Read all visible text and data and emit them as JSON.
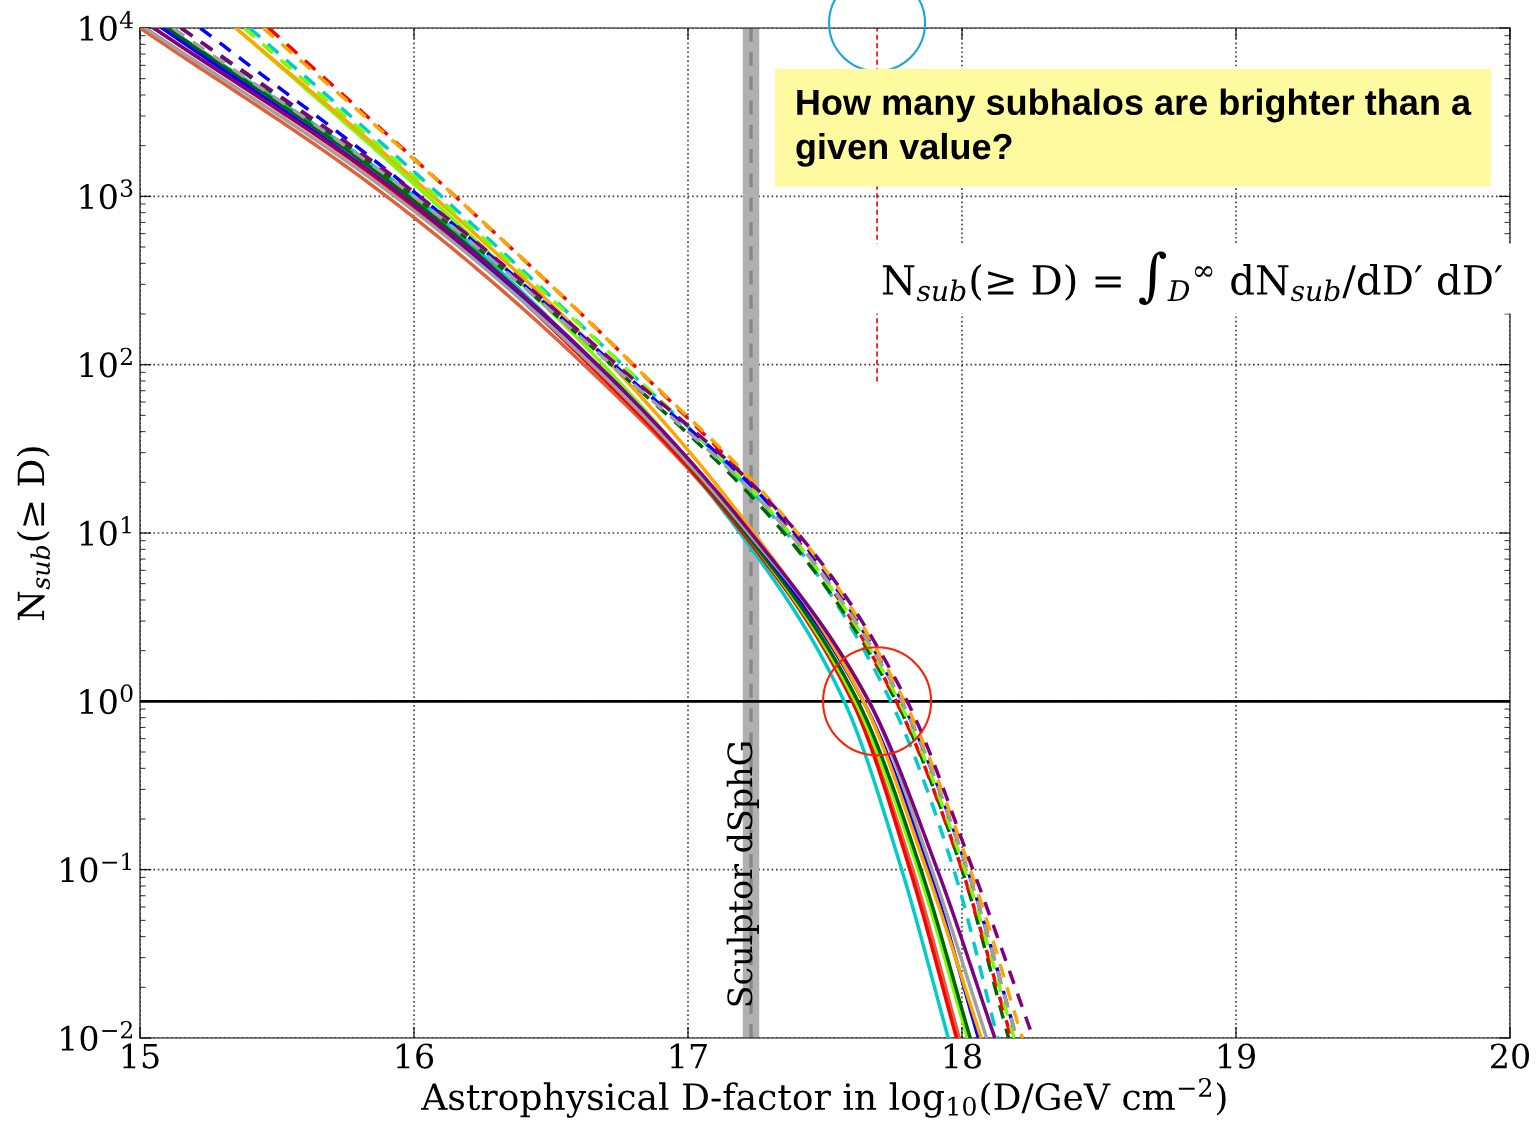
{
  "chart_data": {
    "type": "line",
    "xlabel": "Astrophysical D-factor in log$_{10}$(D/GeV cm$^{−2}$)",
    "ylabel": "N$_{sub}$(≥ D)",
    "xlim": [
      15,
      20
    ],
    "xticks": [
      15,
      16,
      17,
      18,
      19,
      20
    ],
    "ylim": [
      0.01,
      10000
    ],
    "log": "y",
    "yticks": [
      {
        "value": 0.01,
        "label": "10$^{−2}$"
      },
      {
        "value": 0.1,
        "label": "10$^{−1}$"
      },
      {
        "value": 1,
        "label": "10$^{0}$"
      },
      {
        "value": 10,
        "label": "10$^{1}$"
      },
      {
        "value": 100,
        "label": "10$^{2}$"
      },
      {
        "value": 1000,
        "label": "10$^{3}$"
      },
      {
        "value": 10000,
        "label": "10$^{4}$"
      }
    ],
    "grid": true,
    "series": [
      {
        "color": "#e0603c",
        "line_style": "solid",
        "x": [
          15.0,
          15.9,
          16.62,
          17.2,
          17.6,
          17.82,
          17.99
        ],
        "values": [
          10000,
          1000,
          100,
          10,
          1,
          0.1,
          0.01
        ]
      },
      {
        "color": "#00cccc",
        "line_style": "solid",
        "x": [
          15.1,
          16.0,
          16.66,
          17.19,
          17.57,
          17.78,
          17.95
        ],
        "values": [
          10000,
          1000,
          100,
          10,
          1,
          0.1,
          0.01
        ]
      },
      {
        "color": "#ff0000",
        "line_style": "solid",
        "x": [
          15.05,
          15.95,
          16.64,
          17.2,
          17.6,
          17.81,
          17.98
        ],
        "values": [
          10000,
          1000,
          100,
          10,
          1,
          0.1,
          0.01
        ]
      },
      {
        "color": "#7cfc00",
        "line_style": "solid",
        "x": [
          15.35,
          16.05,
          16.69,
          17.21,
          17.61,
          17.84,
          18.02
        ],
        "values": [
          10000,
          1000,
          100,
          10,
          1,
          0.1,
          0.01
        ]
      },
      {
        "color": "#006400",
        "line_style": "solid",
        "x": [
          15.1,
          15.98,
          16.66,
          17.21,
          17.62,
          17.85,
          18.03
        ],
        "values": [
          10000,
          1000,
          100,
          10,
          1,
          0.1,
          0.01
        ]
      },
      {
        "color": "#0000ff",
        "line_style": "solid",
        "x": [
          15.08,
          15.96,
          16.66,
          17.22,
          17.64,
          17.88,
          18.06
        ],
        "values": [
          10000,
          1000,
          100,
          10,
          1,
          0.1,
          0.01
        ]
      },
      {
        "color": "#ffa500",
        "line_style": "solid",
        "x": [
          15.35,
          16.07,
          16.72,
          17.24,
          17.64,
          17.87,
          18.07
        ],
        "values": [
          10000,
          1000,
          100,
          10,
          1,
          0.1,
          0.01
        ]
      },
      {
        "color": "#a0a0a0",
        "line_style": "solid",
        "x": [
          15.02,
          15.93,
          16.65,
          17.22,
          17.66,
          17.89,
          18.09
        ],
        "values": [
          10000,
          1000,
          100,
          10,
          1,
          0.1,
          0.01
        ]
      },
      {
        "color": "#800080",
        "line_style": "solid",
        "x": [
          15.05,
          15.96,
          16.67,
          17.23,
          17.66,
          17.91,
          18.12
        ],
        "values": [
          10000,
          1000,
          100,
          10,
          1,
          0.1,
          0.01
        ]
      },
      {
        "color": "#00cccc",
        "line_style": "dashed",
        "x": [
          15.4,
          16.1,
          16.76,
          17.36,
          17.74,
          17.97,
          18.13
        ],
        "values": [
          10000,
          1000,
          100,
          10,
          1,
          0.1,
          0.01
        ]
      },
      {
        "color": "#006400",
        "line_style": "dashed",
        "x": [
          15.15,
          16.0,
          16.72,
          17.35,
          17.76,
          18.0,
          18.17
        ],
        "values": [
          10000,
          1000,
          100,
          10,
          1,
          0.1,
          0.01
        ]
      },
      {
        "color": "#ff0000",
        "line_style": "dashed",
        "x": [
          15.47,
          16.15,
          16.8,
          17.38,
          17.76,
          18.0,
          18.18
        ],
        "values": [
          10000,
          1000,
          100,
          10,
          1,
          0.1,
          0.01
        ]
      },
      {
        "color": "#7cfc00",
        "line_style": "dashed",
        "x": [
          15.38,
          16.08,
          16.76,
          17.37,
          17.77,
          18.01,
          18.19
        ],
        "values": [
          10000,
          1000,
          100,
          10,
          1,
          0.1,
          0.01
        ]
      },
      {
        "color": "#0000ff",
        "line_style": "dashed",
        "x": [
          15.22,
          16.02,
          16.73,
          17.39,
          17.78,
          18.02,
          18.2
        ],
        "values": [
          10000,
          1000,
          100,
          10,
          1,
          0.1,
          0.01
        ]
      },
      {
        "color": "#a0a0a0",
        "line_style": "dashed",
        "x": [
          15.12,
          16.0,
          16.72,
          17.37,
          17.78,
          18.02,
          18.2
        ],
        "values": [
          10000,
          1000,
          100,
          10,
          1,
          0.1,
          0.01
        ]
      },
      {
        "color": "#ffa500",
        "line_style": "dashed",
        "x": [
          15.45,
          16.15,
          16.8,
          17.4,
          17.79,
          18.03,
          18.22
        ],
        "values": [
          10000,
          1000,
          100,
          10,
          1,
          0.1,
          0.01
        ]
      },
      {
        "color": "#800080",
        "line_style": "dashed",
        "x": [
          15.15,
          16.02,
          16.74,
          17.4,
          17.8,
          18.04,
          18.26
        ],
        "values": [
          10000,
          1000,
          100,
          10,
          1,
          0.1,
          0.01
        ]
      }
    ],
    "bands": [
      {
        "axis": "x",
        "from": 17.2,
        "to": 17.26,
        "label": "Sculptor dSphG",
        "color": "#b0b0b0"
      }
    ],
    "ref_lines": [
      {
        "axis": "x",
        "value": 17.23,
        "color": "#888888",
        "line_style": "dashed"
      },
      {
        "axis": "y",
        "value": 1,
        "color": "#000000",
        "line_style": "solid"
      },
      {
        "axis": "x",
        "value": 17.69,
        "color": "#ff0000",
        "line_style": "dashed"
      }
    ],
    "annotations": [
      "How many subhalos are brighter than a given value?",
      "N$_{sub}$(≥ D) = ∫$_{D}$$^{∞}$ dN$_{sub}$/dD′ dD′"
    ]
  }
}
